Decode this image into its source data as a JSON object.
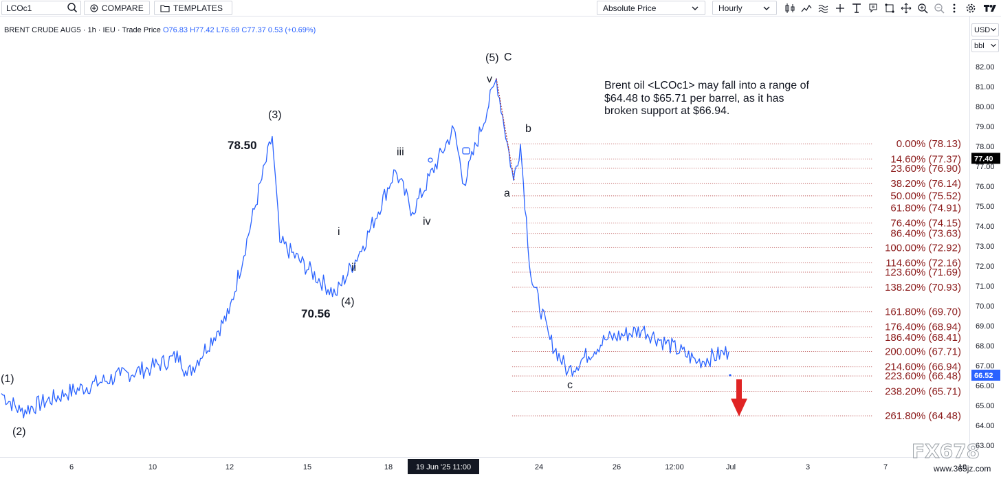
{
  "toolbar": {
    "symbol": "LCOc1",
    "compare_label": "COMPARE",
    "templates_label": "TEMPLATES",
    "price_mode": "Absolute Price",
    "interval": "Hourly"
  },
  "price_axis": {
    "currency": "USD",
    "unit": "bbl",
    "tick_labels": [
      "82.00",
      "81.00",
      "80.00",
      "79.00",
      "78.00",
      "77.00",
      "76.00",
      "75.00",
      "74.00",
      "73.00",
      "72.00",
      "71.00",
      "70.00",
      "69.00",
      "68.00",
      "67.00",
      "66.00",
      "65.00",
      "64.00",
      "63.00"
    ],
    "last_price_badge": "77.40",
    "last_price_color": "#000000",
    "target_badge": "66.52",
    "target_color": "#2962ff"
  },
  "legend": {
    "name": "BRENT CRUDE AUG5",
    "interval": "1h",
    "exchange": "IEU",
    "type": "Trade Price",
    "o": "O76.83",
    "h": "H77.42",
    "l": "L76.69",
    "c": "C77.37",
    "change": "0.53 (+0.69%)"
  },
  "annotation": {
    "line1": "Brent oil <LCOc1> may fall into a range of",
    "line2": "$64.48 to $65.71 per  barrel, as it has",
    "line3": "broken support at $66.94."
  },
  "wave_labels": {
    "w1": "(1)",
    "w2": "(2)",
    "w3": "(3)",
    "w4": "(4)",
    "w5": "(5)",
    "C": "C",
    "i": "i",
    "ii": "ii",
    "iii": "iii",
    "iv": "iv",
    "v": "v",
    "a": "a",
    "b": "b",
    "c": "c",
    "peak_price": "78.50",
    "trough_price": "70.56"
  },
  "time_axis": {
    "labels": [
      "6",
      "10",
      "12",
      "15",
      "18",
      "24",
      "26",
      "12:00",
      "Jul",
      "3",
      "7",
      "10"
    ],
    "crosshair_label": "19 Jun '25   11:00"
  },
  "watermark": {
    "brand": "FX678",
    "url": "www.365jz.com"
  },
  "colors": {
    "price_line": "#2962ff",
    "fib": "#8b1a1a",
    "arrow": "#e02424"
  },
  "chart_data": {
    "type": "line",
    "title": "BRENT CRUDE AUG5",
    "ylim": [
      62.6,
      83.2
    ],
    "x_unit": "hourly bars, 4 Jun 2025 to 1 Jul 2025",
    "anchors": [
      {
        "x": "4 Jun",
        "y": 65.6
      },
      {
        "x": "5 Jun",
        "y": 64.7
      },
      {
        "x": "6 Jun",
        "y": 65.6
      },
      {
        "x": "9 Jun",
        "y": 66.5
      },
      {
        "x": "10 Jun",
        "y": 66.9
      },
      {
        "x": "11 Jun",
        "y": 67.5
      },
      {
        "x": "11 Jun",
        "y": 66.5
      },
      {
        "x": "12 Jun",
        "y": 69.6
      },
      {
        "x": "13 Jun",
        "y": 78.5
      },
      {
        "x": "13 Jun",
        "y": 73.2
      },
      {
        "x": "16 Jun",
        "y": 70.56
      },
      {
        "x": "17 Jun",
        "y": 73.0
      },
      {
        "x": "18 Jun",
        "y": 76.8
      },
      {
        "x": "19 Jun",
        "y": 74.7
      },
      {
        "x": "20 Jun",
        "y": 78.9
      },
      {
        "x": "20 Jun",
        "y": 76.1
      },
      {
        "x": "23 Jun",
        "y": 81.4
      },
      {
        "x": "23 Jun",
        "y": 76.3
      },
      {
        "x": "23 Jun",
        "y": 78.1
      },
      {
        "x": "24 Jun",
        "y": 71.5
      },
      {
        "x": "24 Jun",
        "y": 68.3
      },
      {
        "x": "25 Jun",
        "y": 66.7
      },
      {
        "x": "26 Jun",
        "y": 68.3
      },
      {
        "x": "27 Jun",
        "y": 68.8
      },
      {
        "x": "27 Jun",
        "y": 67.2
      },
      {
        "x": "30 Jun",
        "y": 67.7
      }
    ],
    "fibonacci": [
      {
        "label": "0.00% (78.13)",
        "value": 78.13
      },
      {
        "label": "14.60% (77.37)",
        "value": 77.37
      },
      {
        "label": "23.60% (76.90)",
        "value": 76.9
      },
      {
        "label": "38.20% (76.14)",
        "value": 76.14
      },
      {
        "label": "50.00% (75.52)",
        "value": 75.52
      },
      {
        "label": "61.80% (74.91)",
        "value": 74.91
      },
      {
        "label": "76.40% (74.15)",
        "value": 74.15
      },
      {
        "label": "86.40% (73.63)",
        "value": 73.63
      },
      {
        "label": "100.00% (72.92)",
        "value": 72.92
      },
      {
        "label": "114.60% (72.16)",
        "value": 72.16
      },
      {
        "label": "123.60% (71.69)",
        "value": 71.69
      },
      {
        "label": "138.20% (70.93)",
        "value": 70.93
      },
      {
        "label": "161.80% (69.70)",
        "value": 69.7
      },
      {
        "label": "176.40% (68.94)",
        "value": 68.94
      },
      {
        "label": "186.40% (68.41)",
        "value": 68.41
      },
      {
        "label": "200.00% (67.71)",
        "value": 67.71
      },
      {
        "label": "214.60% (66.94)",
        "value": 66.94
      },
      {
        "label": "223.60% (66.48)",
        "value": 66.48
      },
      {
        "label": "238.20% (65.71)",
        "value": 65.71
      },
      {
        "label": "261.80% (64.48)",
        "value": 64.48
      }
    ]
  }
}
